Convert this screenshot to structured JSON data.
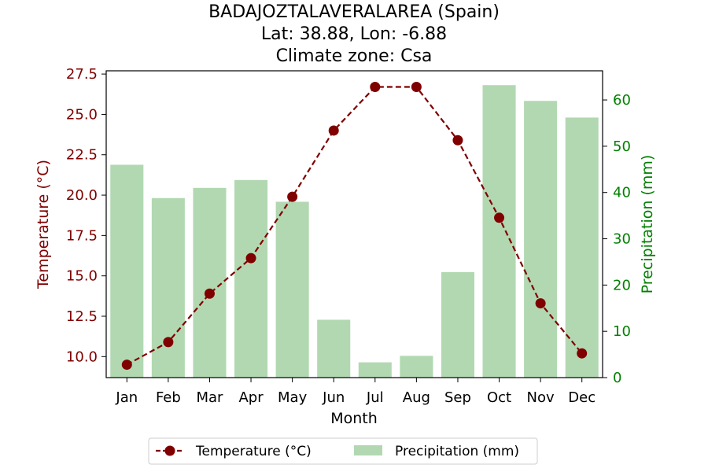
{
  "chart_data": {
    "type": "bar+line",
    "title_lines": [
      "BADAJOZTALAVERALAREA (Spain)",
      "Lat: 38.88, Lon: -6.88",
      "Climate zone: Csa"
    ],
    "xlabel": "Month",
    "ylabel_left": "Temperature (°C)",
    "ylabel_right": "Precipitation (mm)",
    "categories": [
      "Jan",
      "Feb",
      "Mar",
      "Apr",
      "May",
      "Jun",
      "Jul",
      "Aug",
      "Sep",
      "Oct",
      "Nov",
      "Dec"
    ],
    "temperature": {
      "name": "Temperature (°C)",
      "values": [
        9.5,
        10.9,
        13.9,
        16.1,
        19.9,
        24.0,
        26.7,
        26.7,
        23.4,
        18.6,
        13.3,
        10.2
      ],
      "ylim": [
        8.7,
        27.7
      ],
      "ticks": [
        "10.0",
        "12.5",
        "15.0",
        "17.5",
        "20.0",
        "22.5",
        "25.0",
        "27.5"
      ],
      "color": "#800000"
    },
    "precipitation": {
      "name": "Precipitation (mm)",
      "values": [
        46,
        38.8,
        41,
        42.7,
        38,
        12.5,
        3.3,
        4.7,
        22.8,
        63.2,
        59.8,
        56.2
      ],
      "ylim": [
        0,
        66.3
      ],
      "ticks": [
        "0",
        "10",
        "20",
        "30",
        "40",
        "50",
        "60"
      ],
      "color": "#b2d8b2"
    },
    "grid": false,
    "legend_position": "bottom-center"
  }
}
